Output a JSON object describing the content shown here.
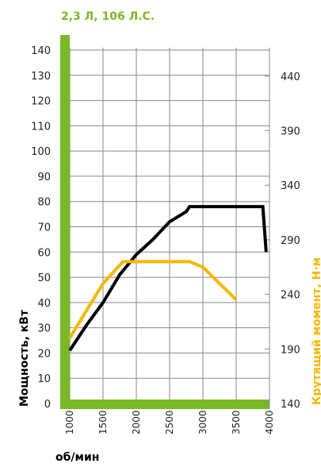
{
  "chart_data": {
    "type": "line",
    "title": "2,3 Л, 106 Л.С.",
    "xlabel": "об/мин",
    "ylabel_left": "Мощность, кВт",
    "ylabel_right": "Крутящий момент, Н·м",
    "x_ticks": [
      "1000",
      "1500",
      "2000",
      "2500",
      "3000",
      "3500",
      "4000"
    ],
    "y_left_ticks": [
      "0",
      "10",
      "20",
      "30",
      "40",
      "50",
      "60",
      "70",
      "80",
      "90",
      "100",
      "110",
      "120",
      "130",
      "140"
    ],
    "y_right_ticks": [
      "140",
      "190",
      "240",
      "290",
      "340",
      "390",
      "440"
    ],
    "xlim": [
      1000,
      4000
    ],
    "ylim_left": [
      0,
      140
    ],
    "ylim_right": [
      140,
      453
    ],
    "grid": true,
    "colors": {
      "axis": "#7ab826",
      "power": "#000000",
      "torque": "#f5b800",
      "title": "#7ab826",
      "right_label": "#f5b800"
    },
    "series": [
      {
        "name": "Мощность, кВт",
        "axis": "left",
        "x": [
          1000,
          1250,
          1500,
          1750,
          2000,
          2250,
          2500,
          2750,
          2800,
          3000,
          3500,
          3900,
          3950
        ],
        "y": [
          21,
          31,
          40,
          51,
          59,
          65,
          72,
          76,
          78,
          78,
          78,
          78,
          60
        ]
      },
      {
        "name": "Крутящий момент, Н·м",
        "axis": "right",
        "x": [
          1000,
          1500,
          1800,
          2000,
          2500,
          2800,
          3000,
          3500
        ],
        "y": [
          200,
          250,
          270,
          270,
          270,
          270,
          265,
          235
        ]
      }
    ]
  }
}
